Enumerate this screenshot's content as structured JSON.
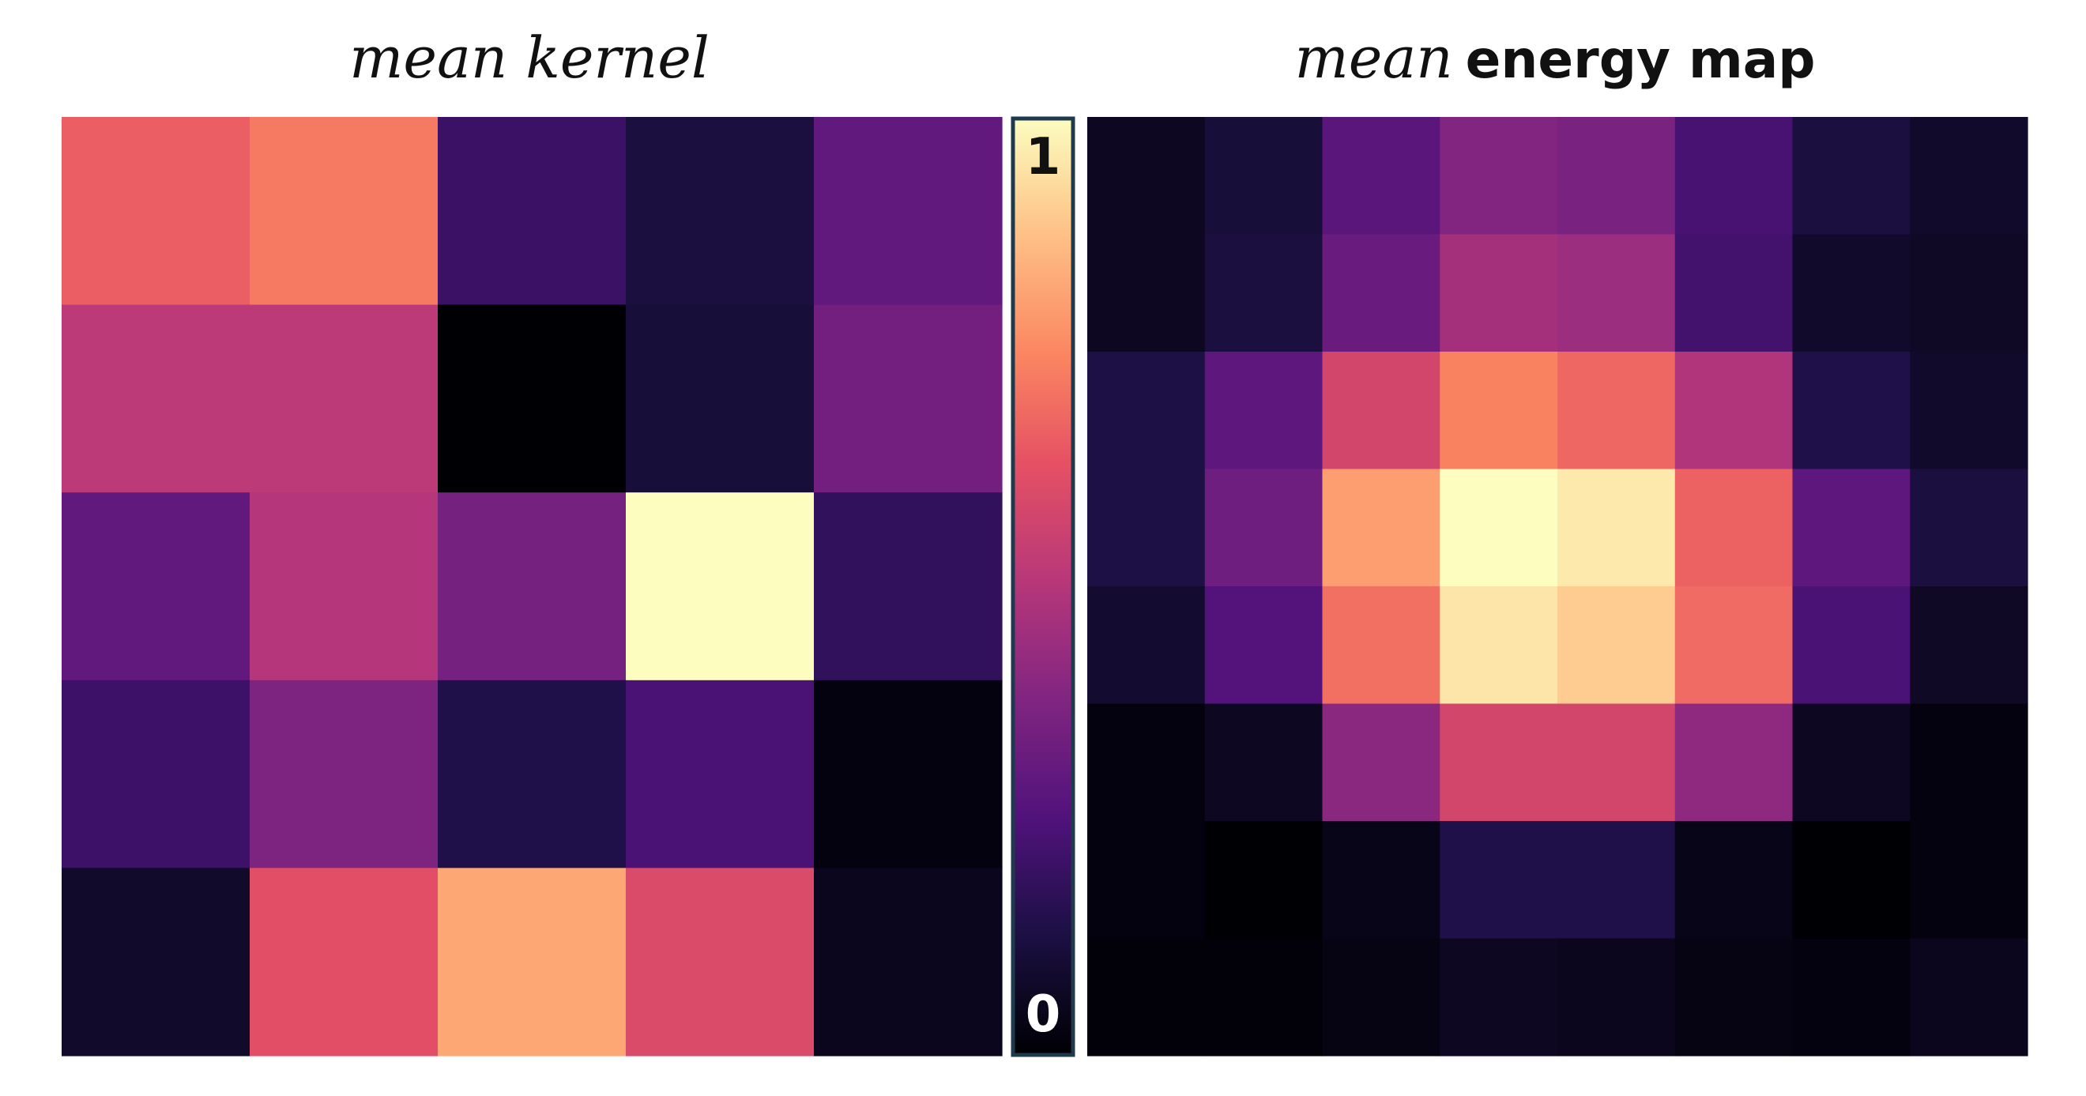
{
  "chart_data": [
    {
      "type": "heatmap",
      "title_italic": "mean kernel",
      "title_bold": "",
      "rows": 5,
      "cols": 5,
      "values": [
        [
          0.66,
          0.72,
          0.2,
          0.12,
          0.3
        ],
        [
          0.52,
          0.52,
          0.0,
          0.11,
          0.34
        ],
        [
          0.3,
          0.5,
          0.35,
          1.0,
          0.18
        ],
        [
          0.21,
          0.37,
          0.14,
          0.24,
          0.02
        ],
        [
          0.08,
          0.62,
          0.82,
          0.6,
          0.05
        ]
      ]
    },
    {
      "type": "heatmap",
      "title_italic": "mean",
      "title_bold": "energy map",
      "rows": 8,
      "cols": 8,
      "values": [
        [
          0.06,
          0.11,
          0.28,
          0.38,
          0.36,
          0.23,
          0.12,
          0.08
        ],
        [
          0.06,
          0.12,
          0.32,
          0.46,
          0.44,
          0.22,
          0.08,
          0.07
        ],
        [
          0.13,
          0.29,
          0.58,
          0.74,
          0.68,
          0.49,
          0.14,
          0.08
        ],
        [
          0.13,
          0.33,
          0.8,
          1.0,
          0.96,
          0.67,
          0.29,
          0.12
        ],
        [
          0.09,
          0.26,
          0.7,
          0.95,
          0.9,
          0.69,
          0.24,
          0.07
        ],
        [
          0.02,
          0.06,
          0.4,
          0.58,
          0.58,
          0.41,
          0.06,
          0.02
        ],
        [
          0.02,
          0.0,
          0.04,
          0.14,
          0.14,
          0.04,
          0.0,
          0.02
        ],
        [
          0.01,
          0.01,
          0.03,
          0.06,
          0.05,
          0.03,
          0.02,
          0.05
        ]
      ]
    }
  ],
  "colorbar": {
    "colormap": "magma",
    "max_label": "1",
    "min_label": "0",
    "range": [
      0,
      1
    ],
    "frame_color": "#1f3a4d"
  }
}
